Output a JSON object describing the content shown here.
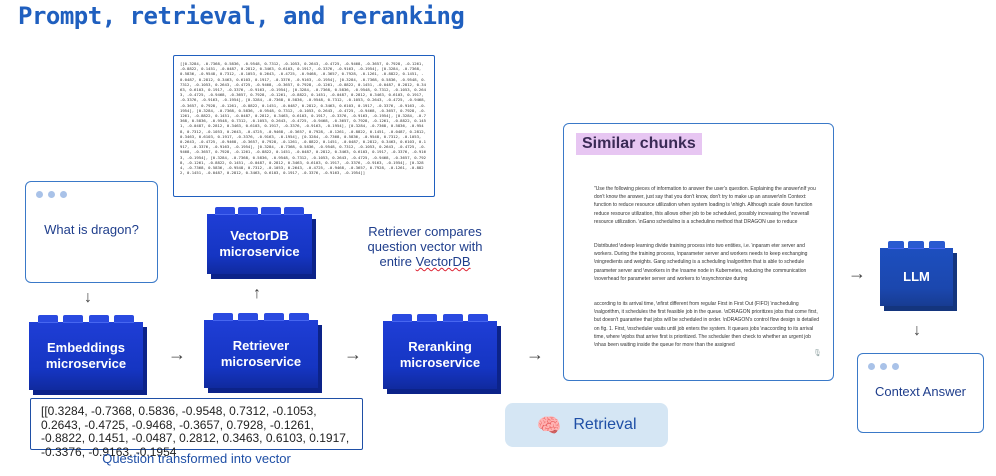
{
  "title": "Prompt, retrieval, and reranking",
  "question": "What is dragon?",
  "vector_dump": "[[0.3284, -0.7368, 0.5836, -0.9548, 0.7312, -0.1053, 0.2643, -0.4725, -0.9468, -0.3657, 0.7928, -0.1261, -0.8822, 0.1451, -0.0487, 0.2812, 0.3463, 0.6103, 0.1917, -0.3376, -0.9163, -0.1954], [0.3284, -0.7368, 0.5836, -0.9548, 0.7312, -0.1053, 0.2643, -0.4725, -0.9468, -0.3657, 0.7928, -0.1261, -0.8822, 0.1451, -0.0487, 0.2812, 0.3463, 0.6103, 0.1917, -0.3376, -0.9163, -0.1954], [0.3284, -0.7368, 0.5836, -0.9548, 0.7312, -0.1053, 0.2643, -0.4725, -0.9468, -0.3657, 0.7928, -0.1261, -0.8822, 0.1451, -0.0487, 0.2812, 0.3463, 0.6103, 0.1917, -0.3376, -0.9163, -0.1954], [0.3284, -0.7368, 0.5836, -0.9548, 0.7312, -0.1053, 0.2643, -0.4725, -0.9468, -0.3657, 0.7928, -0.1261, -0.8822, 0.1451, -0.0487, 0.2812, 0.3463, 0.6103, 0.1917, -0.3376, -0.9163, -0.1954], [0.3284, -0.7368, 0.5836, -0.9548, 0.7312, -0.1053, 0.2643, -0.4725, -0.9468, -0.3657, 0.7928, -0.1261, -0.8822, 0.1451, -0.0487, 0.2812, 0.3463, 0.6103, 0.1917, -0.3376, -0.9163, -0.1954], [0.3284, -0.7368, 0.5836, -0.9548, 0.7312, -0.1053, 0.2643, -0.4725, -0.9468, -0.3657, 0.7928, -0.1261, -0.8822, 0.1451, -0.0487, 0.2812, 0.3463, 0.6103, 0.1917, -0.3376, -0.9163, -0.1954], [0.3284, -0.7368, 0.5836, -0.9548, 0.7312, -0.1053, 0.2643, -0.4725, -0.9468, -0.3657, 0.7928, -0.1261, -0.8822, 0.1451, -0.0487, 0.2812, 0.3463, 0.6103, 0.1917, -0.3376, -0.9163, -0.1954], [0.3284, -0.7368, 0.5836, -0.9548, 0.7312, -0.1053, 0.2643, -0.4725, -0.9468, -0.3657, 0.7928, -0.1261, -0.8822, 0.1451, -0.0487, 0.2812, 0.3463, 0.6103, 0.1917, -0.3376, -0.9163, -0.1954], [0.3284, -0.7368, 0.5836, -0.9548, 0.7312, -0.1053, 0.2643, -0.4725, -0.9468, -0.3657, 0.7928, -0.1261, -0.8822, 0.1451, -0.0487, 0.2812, 0.3463, 0.6103, 0.1917, -0.3376, -0.9163, -0.1954], [0.3284, -0.7368, 0.5836, -0.9548, 0.7312, -0.1053, 0.2643, -0.4725, -0.9468, -0.3657, 0.7928, -0.1261, -0.8822, 0.1451, -0.0487, 0.2812, 0.3463, 0.6103, 0.1917, -0.3376, -0.9163, -0.1954], [0.3284, -0.7368, 0.5836, -0.9548, 0.7312, -0.1053, 0.2643, -0.4725, -0.9468, -0.3657, 0.7928, -0.1261, -0.8822, 0.1451, -0.0487, 0.2812, 0.3463, 0.6103, 0.1917, -0.3376, -0.9163, -0.1954], [0.3284, -0.7368, 0.5836, -0.9548, 0.7312, -0.1053, 0.2643, -0.4725, -0.9468, -0.3657, 0.7928, -0.1261, -0.8822, 0.1451, -0.0487, 0.2812, 0.3463, 0.6103, 0.1917, -0.3376, -0.9163, -0.1954]]",
  "blocks": {
    "vectordb": "VectorDB\nmicroservice",
    "embeddings": "Embeddings\nmicroservice",
    "retriever": "Retriever\nmicroservice",
    "reranking": "Reranking\nmicroservice",
    "llm": "LLM"
  },
  "retriever_note_1": "Retriever compares question vector with entire ",
  "retriever_note_2": "VectorDB",
  "question_vector": "[[0.3284, -0.7368, 0.5836, -0.9548, 0.7312, -0.1053, 0.2643, -0.4725, -0.9468, -0.3657, 0.7928, -0.1261, -0.8822, 0.1451, -0.0487, 0.2812, 0.3463, 0.6103, 0.1917, -0.3376, -0.9163, -0.1954",
  "question_vector_caption": "Question transformed into vector",
  "similar_chunks_title": "Similar chunks",
  "chunks": [
    "\"Use the following pieces of information to answer the user's question. Explaining the answer\\nIf you don't know the answer, just say that you don't know, don't try to make up an answer\\nIn Context: function to reduce resource utilization when system loading is \\nhigh. Although scale down function reduce resource utilization, this allows other job to be scheduled, possibly increasing the \\noverall resource utilization. \\nGang scheduling is a scheduling method that DRAGON use to reduce communication overhead in the system.",
    "Distributed \\ndeep learning divide training process into two entities, i.e. \\nparam eter server and workers. During the training process, \\nparameter server and workers needs to keep exchanging \\ningredients and weights. Gang scheduling is a scheduling \\nalgorithm that is able to schedule parameter server and \\nworkers in the \\nsame node in Kubernetes, reducing the communication \\noverhead for parameter server and workers to \\nsynchronize during",
    "according to its arrival time, \\nfirst different from regular First in First Out (FIFO) \\nscheduling \\nalgorithm, it schedules the first feasible job in the queue. \\nDRAGON prioritizes jobs that come first, but doesn't guarantee that jobs will be scheduled in order. \\nDRAGON's control flow design is detailed on fig. 1. First, \\nscheduler waits until job enters the system. It queues jobs \\naccording to its arrival time, where \\njobs that arrive first is prioritized. The scheduler then check to whether an urgent job \\nhas been waiting inside the queue for more than the assigned"
  ],
  "retrieval_button": "Retrieval",
  "context_answer": "Context Answer",
  "colors": {
    "accent": "#1f5fbf",
    "block": "#1535c2",
    "highlight": "#e7c6f2",
    "pill": "#d5e6f4"
  }
}
